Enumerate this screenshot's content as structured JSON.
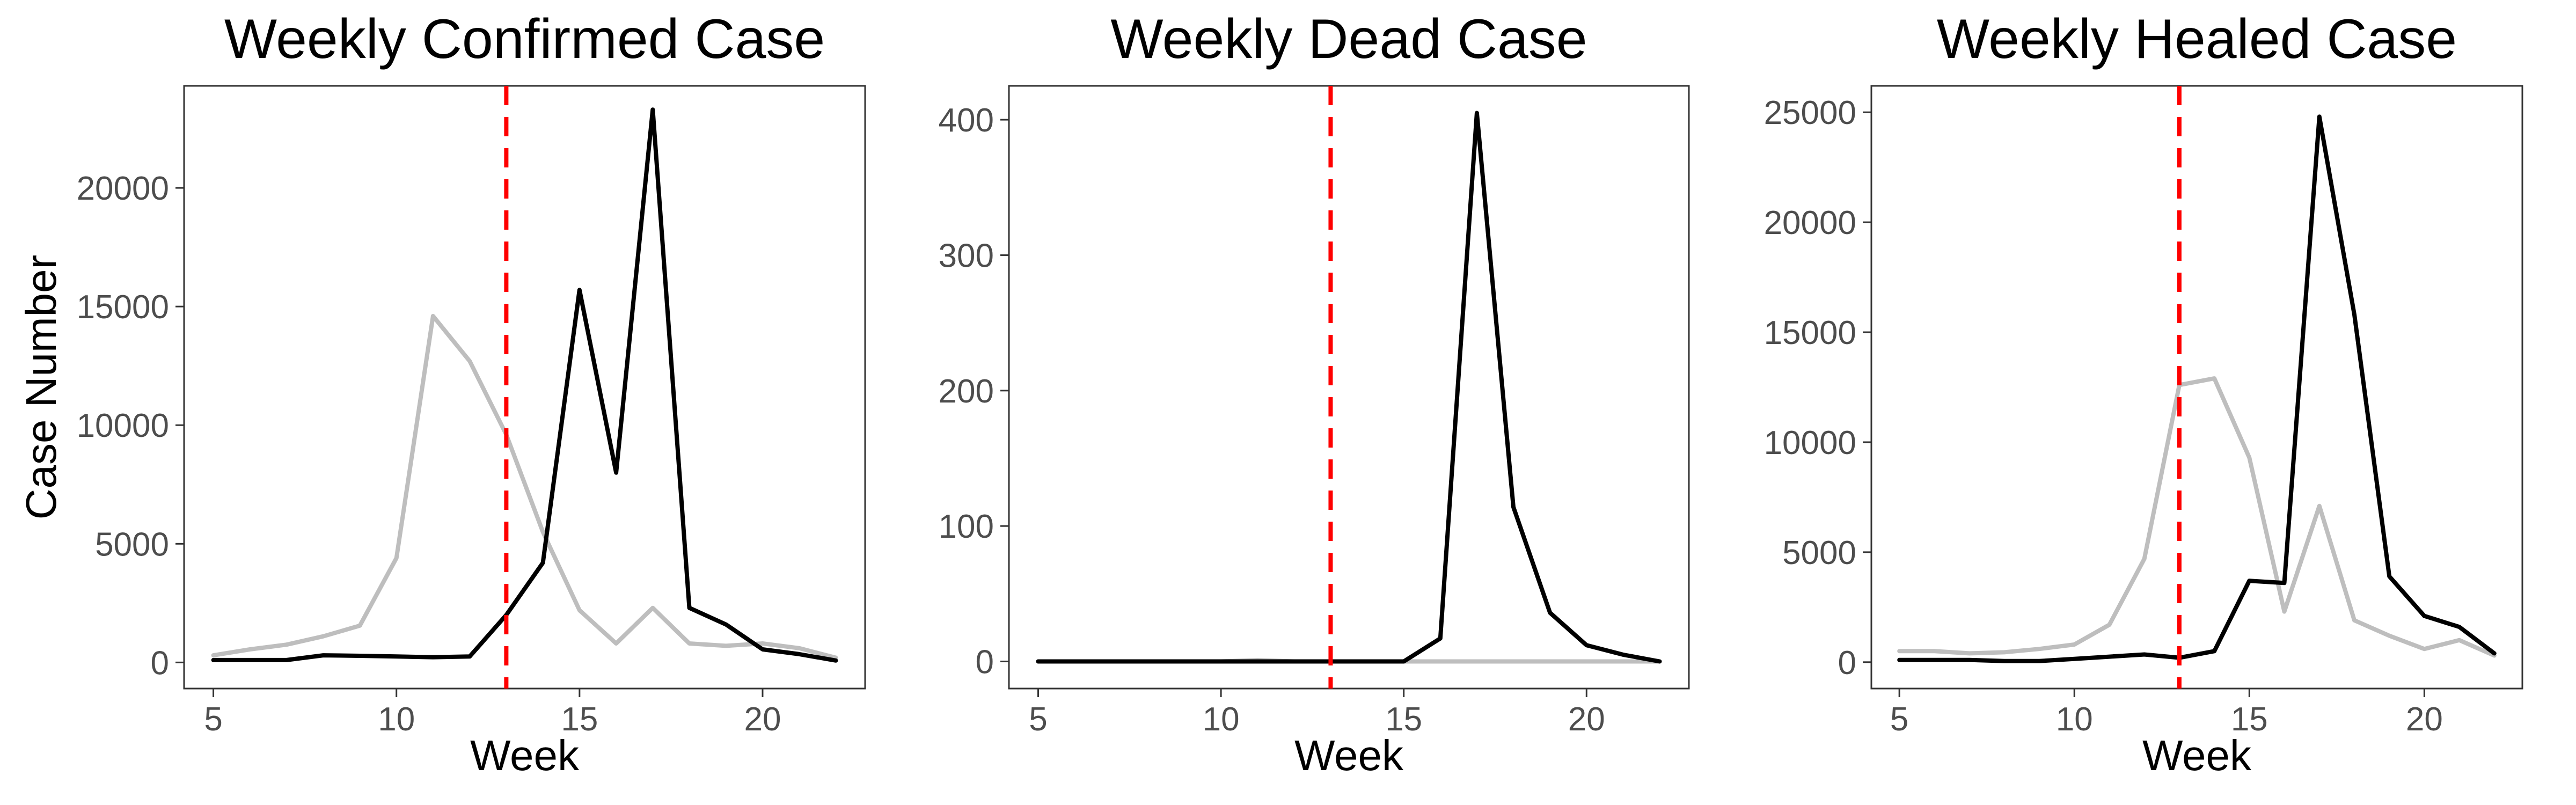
{
  "chart_data": [
    {
      "type": "line",
      "title": "Weekly Confirmed Case",
      "xlabel": "Week",
      "ylabel": "Case Number",
      "xlim": [
        4.2,
        22.8
      ],
      "ylim": [
        -1100,
        24300
      ],
      "xticks": [
        5,
        10,
        15,
        20
      ],
      "yticks": [
        0,
        5000,
        10000,
        15000,
        20000
      ],
      "x": [
        5,
        6,
        7,
        8,
        9,
        10,
        11,
        12,
        13,
        14,
        15,
        16,
        17,
        18,
        19,
        20,
        21,
        22
      ],
      "series": [
        {
          "color": "#bebebe",
          "values": [
            300,
            550,
            750,
            1100,
            1550,
            4400,
            14600,
            12700,
            9600,
            5500,
            2200,
            800,
            2300,
            800,
            700,
            800,
            600,
            200
          ]
        },
        {
          "color": "#000000",
          "values": [
            100,
            100,
            100,
            300,
            280,
            250,
            220,
            250,
            2000,
            4200,
            15700,
            8000,
            23300,
            2300,
            1600,
            550,
            350,
            80
          ]
        }
      ],
      "reference_line": {
        "x": 13,
        "color": "#ff0000",
        "style": "dashed"
      },
      "grid": false
    },
    {
      "type": "line",
      "title": "Weekly Dead Case",
      "xlabel": "Week",
      "ylabel": "",
      "xlim": [
        4.2,
        22.8
      ],
      "ylim": [
        -20,
        425
      ],
      "xticks": [
        5,
        10,
        15,
        20
      ],
      "yticks": [
        0,
        100,
        200,
        300,
        400
      ],
      "x": [
        5,
        6,
        7,
        8,
        9,
        10,
        11,
        12,
        13,
        14,
        15,
        16,
        17,
        18,
        19,
        20,
        21,
        22
      ],
      "series": [
        {
          "color": "#bebebe",
          "values": [
            0,
            0,
            0,
            0,
            0,
            0,
            1,
            0,
            0,
            0,
            0,
            0,
            0,
            0,
            0,
            0,
            0,
            0
          ]
        },
        {
          "color": "#000000",
          "values": [
            0,
            0,
            0,
            0,
            0,
            0,
            0,
            0,
            0,
            0,
            0,
            17,
            405,
            114,
            36,
            12,
            5,
            0
          ]
        }
      ],
      "reference_line": {
        "x": 13,
        "color": "#ff0000",
        "style": "dashed"
      },
      "grid": false
    },
    {
      "type": "line",
      "title": "Weekly Healed Case",
      "xlabel": "Week",
      "ylabel": "",
      "xlim": [
        4.2,
        22.8
      ],
      "ylim": [
        -1200,
        26200
      ],
      "xticks": [
        5,
        10,
        15,
        20
      ],
      "yticks": [
        0,
        5000,
        10000,
        15000,
        20000,
        25000
      ],
      "x": [
        5,
        6,
        7,
        8,
        9,
        10,
        11,
        12,
        13,
        14,
        15,
        16,
        17,
        18,
        19,
        20,
        21,
        22
      ],
      "series": [
        {
          "color": "#bebebe",
          "values": [
            500,
            500,
            400,
            450,
            600,
            800,
            1700,
            4700,
            12600,
            12900,
            9300,
            2300,
            7100,
            1900,
            1200,
            600,
            1000,
            300
          ]
        },
        {
          "color": "#000000",
          "values": [
            100,
            100,
            100,
            50,
            50,
            150,
            250,
            350,
            200,
            500,
            3700,
            3600,
            24800,
            15800,
            3900,
            2100,
            1600,
            400
          ]
        }
      ],
      "reference_line": {
        "x": 13,
        "color": "#ff0000",
        "style": "dashed"
      },
      "grid": false
    }
  ]
}
